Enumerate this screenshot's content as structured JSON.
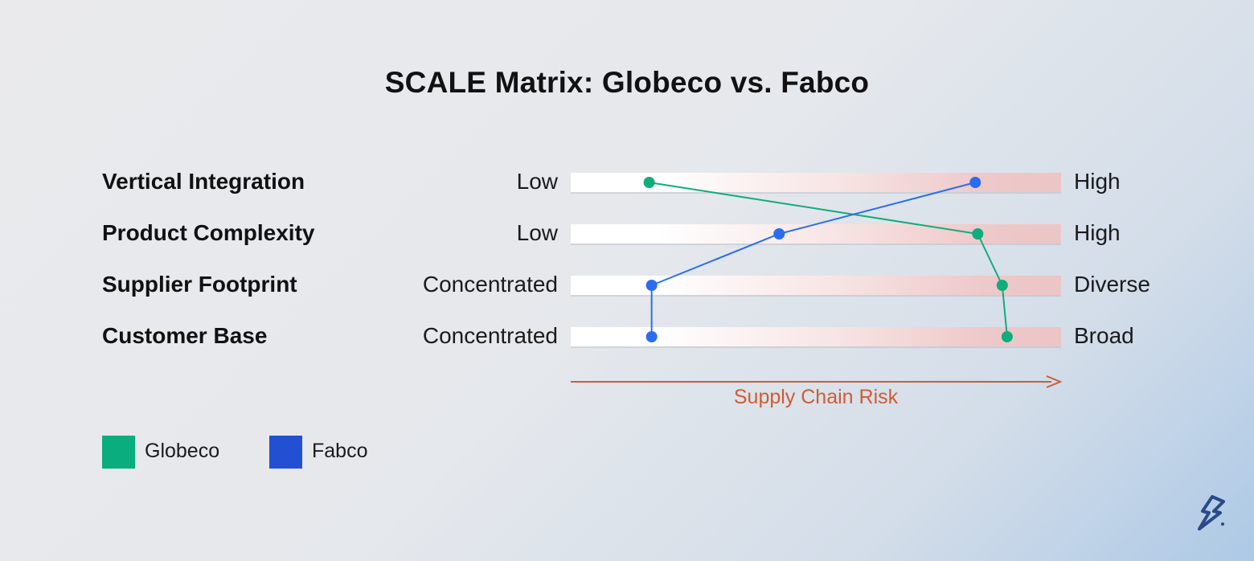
{
  "chart_data": {
    "type": "line",
    "title": "SCALE Matrix: Globeco vs. Fabco",
    "categories": [
      "Vertical Integration",
      "Product Complexity",
      "Supplier Footprint",
      "Customer Base"
    ],
    "low_labels": [
      "Low",
      "Low",
      "Concentrated",
      "Concentrated"
    ],
    "high_labels": [
      "High",
      "High",
      "Diverse",
      "Broad"
    ],
    "x_axis_label": "Supply Chain Risk",
    "xlim": [
      0,
      1
    ],
    "series": [
      {
        "name": "Globeco",
        "color": "#0fad7c",
        "values": [
          0.16,
          0.83,
          0.88,
          0.89
        ]
      },
      {
        "name": "Fabco",
        "color": "#2a6df0",
        "values": [
          0.825,
          0.425,
          0.165,
          0.165
        ]
      }
    ],
    "legend": {
      "position": "bottom-left",
      "items": [
        {
          "name": "Globeco",
          "color": "#0aae7e"
        },
        {
          "name": "Fabco",
          "color": "#2350d3"
        }
      ]
    },
    "grid": false
  },
  "colors": {
    "axis_arrow": "#cf5c33",
    "bar_high_tint": "#ecc5c6"
  },
  "icons": {
    "brand_logo": "toptal-logo-icon"
  }
}
